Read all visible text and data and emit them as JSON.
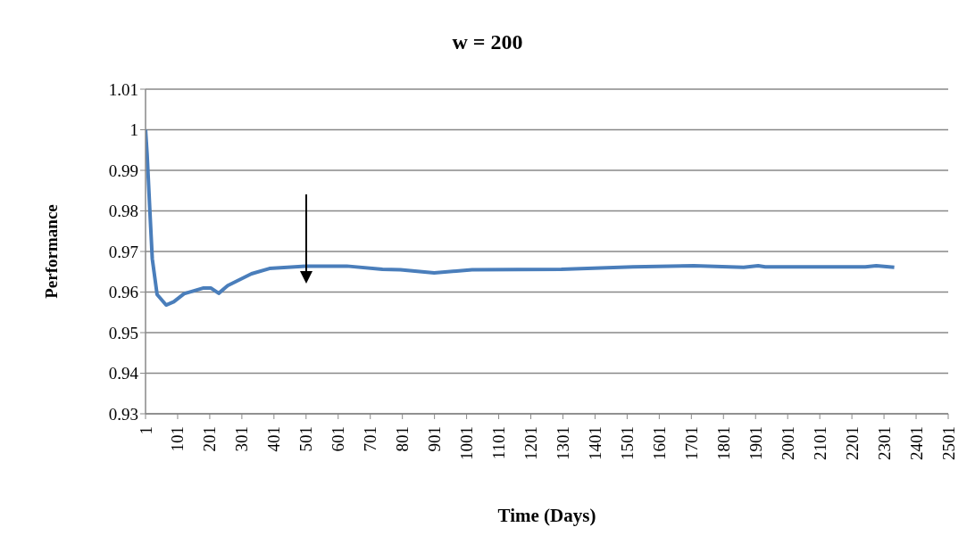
{
  "chart_data": {
    "type": "line",
    "title": "w = 200",
    "xlabel": "Time (Days)",
    "ylabel": "Performance",
    "x": [
      1,
      6,
      15,
      22,
      37,
      65,
      89,
      121,
      182,
      204,
      229,
      257,
      331,
      387,
      499,
      628,
      739,
      795,
      900,
      1018,
      1296,
      1519,
      1708,
      1864,
      1909,
      1931,
      2243,
      2277,
      2333
    ],
    "series": [
      {
        "color": "#4a7ebb",
        "values": [
          1.0,
          0.9939,
          0.9792,
          0.9682,
          0.9594,
          0.9568,
          0.9576,
          0.9596,
          0.961,
          0.961,
          0.9597,
          0.9616,
          0.9645,
          0.9658,
          0.9664,
          0.9664,
          0.9656,
          0.9655,
          0.9647,
          0.9655,
          0.9656,
          0.9662,
          0.9665,
          0.9661,
          0.9665,
          0.9662,
          0.9662,
          0.9665,
          0.9661
        ]
      }
    ],
    "xlim": [
      1,
      2501
    ],
    "xticks": [
      1,
      101,
      201,
      301,
      401,
      501,
      601,
      701,
      801,
      901,
      1001,
      1101,
      1201,
      1301,
      1401,
      1501,
      1601,
      1701,
      1801,
      1901,
      2001,
      2101,
      2201,
      2301,
      2401,
      2501
    ],
    "ylim": [
      0.93,
      1.01
    ],
    "yticks": [
      0.93,
      0.94,
      0.95,
      0.96,
      0.97,
      0.98,
      0.99,
      1,
      1.01
    ],
    "grid": "y",
    "legend": false,
    "marker": "none",
    "line_style": "solid"
  }
}
